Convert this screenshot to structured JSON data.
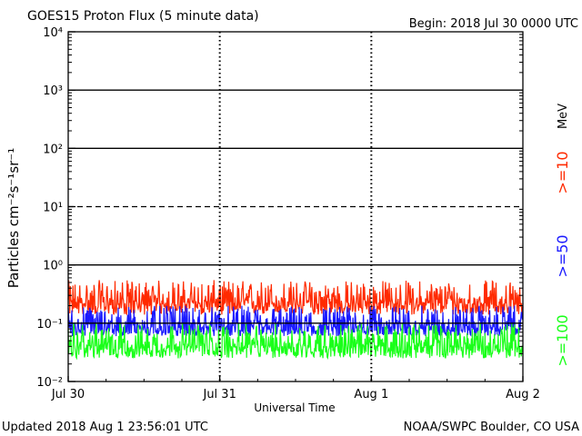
{
  "chart_data": {
    "type": "line",
    "title": "GOES15 Proton Flux (5 minute data)",
    "begin_label": "Begin: 2018 Jul 30 0000 UTC",
    "xlabel": "Universal Time",
    "ylabel": "Particles cm⁻²s⁻¹sr⁻¹",
    "yscale": "log",
    "ylim": [
      0.01,
      10000
    ],
    "grid": true,
    "x_unit": "days from 2018 Jul 30 0000 UTC",
    "xlim": [
      0,
      3
    ],
    "x_ticks": [
      {
        "label": "Jul 30",
        "value": 0
      },
      {
        "label": "Jul 31",
        "value": 1
      },
      {
        "label": "Aug 1",
        "value": 2
      },
      {
        "label": "Aug 2",
        "value": 3
      }
    ],
    "y_ticks": [
      {
        "label": "10⁻²",
        "value": 0.01
      },
      {
        "label": "10⁻¹",
        "value": 0.1
      },
      {
        "label": "10⁰",
        "value": 1
      },
      {
        "label": "10¹",
        "value": 10
      },
      {
        "label": "10²",
        "value": 100
      },
      {
        "label": "10³",
        "value": 1000
      },
      {
        "label": "10⁴",
        "value": 10000
      }
    ],
    "threshold_lines": [
      {
        "value": 1000,
        "style": "solid"
      },
      {
        "value": 100,
        "style": "solid"
      },
      {
        "value": 10,
        "style": "dashed"
      },
      {
        "value": 1,
        "style": "solid"
      },
      {
        "value": 0.1,
        "style": "solid"
      }
    ],
    "unit_label": "MeV",
    "series": [
      {
        "name": ">=10",
        "color": "#ff2a00",
        "baseline": 0.22,
        "min": 0.14,
        "max": 0.55
      },
      {
        "name": ">=50",
        "color": "#1a1aff",
        "baseline": 0.085,
        "min": 0.06,
        "max": 0.2
      },
      {
        "name": ">=100",
        "color": "#1aff1a",
        "baseline": 0.04,
        "min": 0.025,
        "max": 0.1
      }
    ],
    "sample_interval_minutes": 5
  },
  "footer": {
    "updated": "Updated 2018 Aug  1 23:56:01 UTC",
    "credit": "NOAA/SWPC Boulder, CO USA"
  }
}
